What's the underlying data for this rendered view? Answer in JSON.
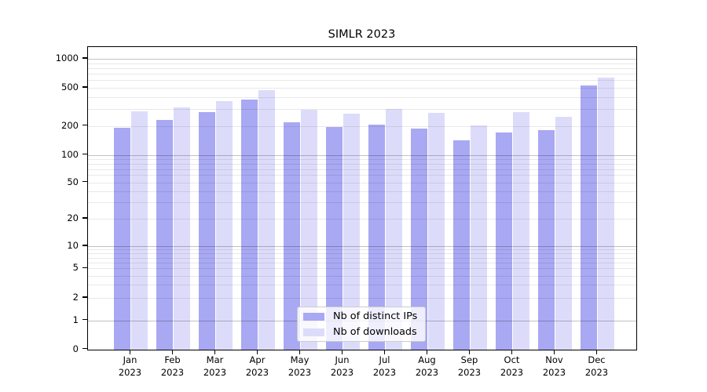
{
  "title": "SIMLR 2023",
  "chart_data": {
    "type": "bar",
    "title": "SIMLR 2023",
    "categories": [
      "Jan",
      "Feb",
      "Mar",
      "Apr",
      "May",
      "Jun",
      "Jul",
      "Aug",
      "Sep",
      "Oct",
      "Nov",
      "Dec"
    ],
    "category_year": "2023",
    "series": [
      {
        "name": "Nb of distinct IPs",
        "color": "#a8a8f3",
        "values": [
          190,
          230,
          280,
          378,
          217,
          194,
          207,
          187,
          141,
          172,
          181,
          531
        ]
      },
      {
        "name": "Nb of downloads",
        "color": "#dcdcfa",
        "values": [
          283,
          310,
          360,
          471,
          294,
          267,
          302,
          275,
          203,
          277,
          250,
          634
        ]
      }
    ],
    "xlabel": "",
    "ylabel": "",
    "y_tick_labels": [
      "0",
      "1",
      "2",
      "5",
      "10",
      "20",
      "50",
      "100",
      "200",
      "500",
      "1000"
    ],
    "y_tick_values": [
      0,
      1,
      2,
      5,
      10,
      20,
      50,
      100,
      200,
      500,
      1000
    ],
    "ylim": [
      0,
      1000
    ],
    "scale": "log-like (labeled 0,1,2,5,10,20,50,100,200,500,1000)",
    "grid": true,
    "grid_minor_color": "#ebebeb",
    "grid_major_color": "#c2c2c2",
    "legend_position": "lower center",
    "legend_entries": [
      "Nb of distinct IPs",
      "Nb of downloads"
    ]
  }
}
